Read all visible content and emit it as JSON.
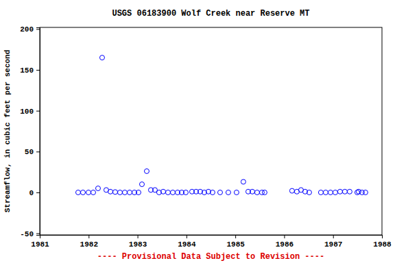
{
  "chart_data": {
    "type": "scatter",
    "title": "USGS 06183900 Wolf Creek near Reserve MT",
    "y_label": "Streamflow, in cubic feet per second",
    "annotation": "---- Provisional Data Subject to Revision ----",
    "x": [
      1981.785,
      1981.883,
      1981.996,
      1982.094,
      1982.192,
      1982.276,
      1982.36,
      1982.445,
      1982.543,
      1982.641,
      1982.739,
      1982.838,
      1982.936,
      1983.02,
      1983.09,
      1983.188,
      1983.272,
      1983.356,
      1983.44,
      1983.525,
      1983.623,
      1983.721,
      1983.819,
      1983.903,
      1983.987,
      1984.114,
      1984.198,
      1984.282,
      1984.366,
      1984.45,
      1984.534,
      1984.689,
      1984.857,
      1985.025,
      1985.165,
      1985.264,
      1985.348,
      1985.446,
      1985.544,
      1985.6,
      1986.161,
      1986.259,
      1986.344,
      1986.428,
      1986.512,
      1986.75,
      1986.848,
      1986.947,
      1987.045,
      1987.143,
      1987.241,
      1987.339,
      1987.494,
      1987.522,
      1987.592,
      1987.662
    ],
    "values": [
      0,
      0,
      0,
      0,
      5,
      165,
      3,
      1,
      0.5,
      0,
      0,
      0,
      0,
      0,
      10,
      26,
      3,
      3,
      0,
      1,
      0,
      0,
      0,
      0,
      0,
      1,
      1,
      1,
      0,
      1,
      0,
      0,
      0,
      0,
      13,
      1,
      1,
      0,
      0,
      0,
      2,
      1,
      3,
      1,
      0,
      0,
      0,
      0,
      0,
      1,
      1,
      1,
      0,
      1,
      0,
      0
    ],
    "color": "#0000ff",
    "marker": "circle-open",
    "xlim": [
      1981,
      1988
    ],
    "xticks": [
      1981,
      1982,
      1983,
      1984,
      1985,
      1986,
      1987,
      1988
    ],
    "ylim": [
      -52,
      202
    ],
    "yticks": [
      -50,
      0,
      50,
      100,
      150,
      200
    ],
    "grid": false
  }
}
